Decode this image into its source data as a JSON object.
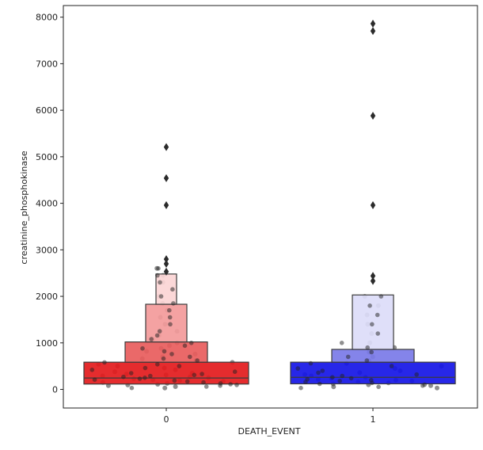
{
  "chart_data": {
    "type": "boxen",
    "title": "",
    "xlabel": "DEATH_EVENT",
    "ylabel": "creatinine_phosphokinase",
    "ylim": [
      -400,
      8250
    ],
    "yticks": [
      0,
      1000,
      2000,
      3000,
      4000,
      5000,
      6000,
      7000,
      8000
    ],
    "grid": false,
    "legend": "none",
    "categories": [
      "0",
      "1"
    ],
    "series": [
      {
        "category": "0",
        "color": "#e31a1c",
        "median": 245,
        "boxes": [
          {
            "low": 115,
            "high": 585,
            "color": "#e31a1c"
          },
          {
            "low": 585,
            "high": 1020,
            "color": "#e85c5c"
          },
          {
            "low": 1020,
            "high": 1830,
            "color": "#f39a9a"
          },
          {
            "low": 1830,
            "high": 2480,
            "color": "#fbd5d5"
          }
        ],
        "outliers": [
          2530,
          2700,
          2800,
          3960,
          4540,
          5209
        ],
        "swarm_sample": [
          30,
          60,
          80,
          95,
          110,
          130,
          150,
          170,
          190,
          210,
          230,
          250,
          270,
          290,
          310,
          330,
          350,
          380,
          420,
          460,
          500,
          540,
          580,
          620,
          660,
          700,
          760,
          820,
          880,
          940,
          1000,
          1080,
          1160,
          1250,
          1400,
          1550,
          1700,
          1850,
          2000,
          2150,
          2300,
          2450,
          2600
        ]
      },
      {
        "category": "1",
        "color": "#1515e6",
        "median": 260,
        "boxes": [
          {
            "low": 120,
            "high": 585,
            "color": "#1515e6"
          },
          {
            "low": 585,
            "high": 860,
            "color": "#7a7ae8"
          },
          {
            "low": 860,
            "high": 2030,
            "color": "#dcdcf8"
          }
        ],
        "outliers": [
          2330,
          2440,
          3960,
          5882,
          7702,
          7861
        ],
        "swarm_sample": [
          30,
          55,
          80,
          100,
          120,
          140,
          160,
          180,
          200,
          220,
          240,
          260,
          290,
          320,
          360,
          400,
          450,
          500,
          560,
          620,
          700,
          800,
          900,
          1000,
          1200,
          1400,
          1600,
          1800,
          2000
        ]
      }
    ]
  }
}
